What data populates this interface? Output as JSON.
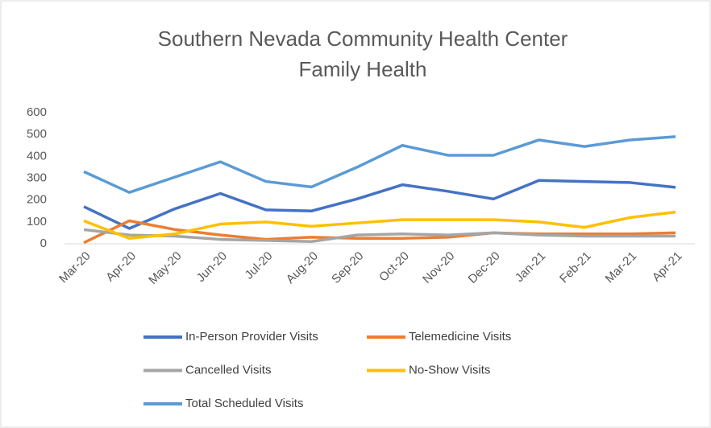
{
  "chart_data": {
    "type": "line",
    "title": [
      "Southern Nevada Community Health Center",
      "Family Health"
    ],
    "categories": [
      "Mar-20",
      "Apr-20",
      "May-20",
      "Jun-20",
      "Jul-20",
      "Aug-20",
      "Sep-20",
      "Oct-20",
      "Nov-20",
      "Dec-20",
      "Jan-21",
      "Feb-21",
      "Mar-21",
      "Apr-21"
    ],
    "series": [
      {
        "name": "In-Person Provider Visits",
        "color": "#4472c4",
        "values": [
          170,
          70,
          160,
          230,
          155,
          150,
          205,
          270,
          240,
          205,
          290,
          285,
          280,
          258
        ]
      },
      {
        "name": "Telemedicine Visits",
        "color": "#ed7d31",
        "values": [
          5,
          105,
          65,
          40,
          20,
          30,
          25,
          25,
          30,
          50,
          45,
          45,
          45,
          50
        ]
      },
      {
        "name": "Cancelled Visits",
        "color": "#a5a5a5",
        "values": [
          65,
          40,
          35,
          20,
          15,
          10,
          40,
          45,
          40,
          50,
          40,
          35,
          35,
          35
        ]
      },
      {
        "name": "No-Show Visits",
        "color": "#ffc000",
        "values": [
          105,
          25,
          45,
          90,
          100,
          80,
          95,
          110,
          110,
          110,
          100,
          75,
          120,
          145
        ]
      },
      {
        "name": "Total Scheduled Visits",
        "color": "#5b9bd5",
        "values": [
          330,
          235,
          305,
          375,
          285,
          260,
          350,
          450,
          405,
          405,
          475,
          445,
          475,
          490
        ]
      }
    ],
    "ylim": [
      0,
      600
    ],
    "yticks": [
      0,
      100,
      200,
      300,
      400,
      500,
      600
    ],
    "grid": false
  }
}
